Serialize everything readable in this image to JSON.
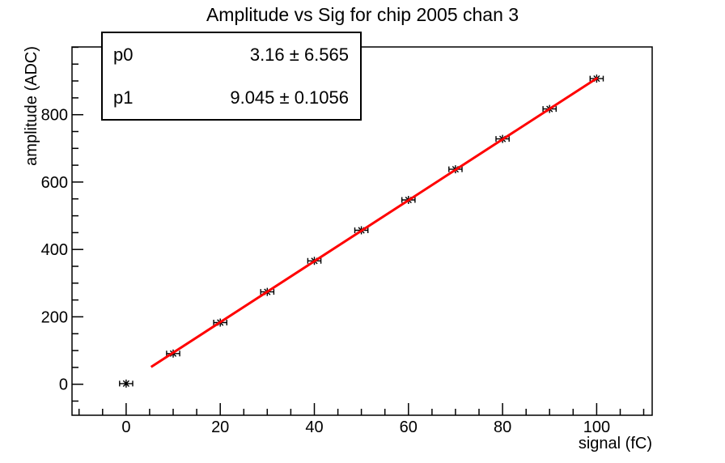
{
  "chart_data": {
    "type": "scatter",
    "title": "Amplitude vs Sig for chip 2005 chan 3",
    "xlabel": "signal (fC)",
    "ylabel": "amplitude (ADC)",
    "xlim": [
      -11.5,
      111.8
    ],
    "ylim": [
      -92,
      1001
    ],
    "grid": false,
    "x_major_ticks": [
      0,
      20,
      40,
      60,
      80,
      100
    ],
    "x_minor_step": 5,
    "y_major_ticks": [
      0,
      200,
      400,
      600,
      800
    ],
    "y_minor_step": 50,
    "points": {
      "x": [
        0,
        10,
        20,
        30,
        40,
        50,
        60,
        70,
        80,
        90,
        100
      ],
      "y": [
        2,
        91,
        183,
        274,
        366,
        457,
        547,
        638,
        728,
        817,
        907
      ],
      "x_err": 1.4,
      "marker": "asterisk",
      "color": "#000000"
    },
    "fit": {
      "type": "linear",
      "p0": 3.16,
      "p1": 9.045,
      "range": [
        5.3,
        100.2
      ],
      "color": "#ff0000",
      "width": 3
    },
    "stats_box": {
      "rows": [
        {
          "label": "p0",
          "value": "3.16 ± 6.565"
        },
        {
          "label": "p1",
          "value": "9.045 ± 0.1056"
        }
      ]
    },
    "colors": {
      "frame": "#000000",
      "text": "#000000",
      "background": "#ffffff"
    }
  }
}
